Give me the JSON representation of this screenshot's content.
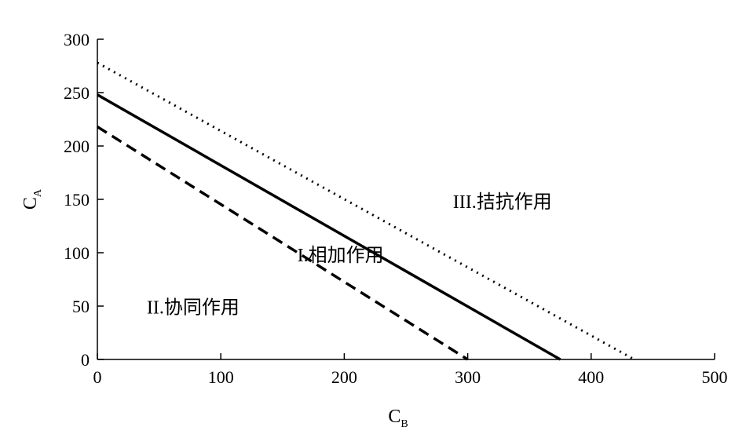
{
  "chart_data": {
    "type": "line",
    "xlabel": {
      "main": "C",
      "sub": "B"
    },
    "ylabel": {
      "main": "C",
      "sub": "A"
    },
    "xlim": [
      0,
      500
    ],
    "ylim": [
      0,
      300
    ],
    "x_ticks": [
      0,
      100,
      200,
      300,
      400,
      500
    ],
    "y_ticks": [
      0,
      50,
      100,
      150,
      200,
      250,
      300
    ],
    "grid": false,
    "series": [
      {
        "style": "dotted",
        "color": "#000000",
        "points": [
          [
            0,
            278
          ],
          [
            435,
            0
          ]
        ]
      },
      {
        "style": "solid",
        "color": "#000000",
        "points": [
          [
            0,
            248
          ],
          [
            375,
            0
          ]
        ]
      },
      {
        "style": "dashed",
        "color": "#000000",
        "points": [
          [
            0,
            218
          ],
          [
            300,
            0
          ]
        ]
      }
    ],
    "annotations": [
      {
        "id": "region-3",
        "text": "III.拮抗作用",
        "x": 288,
        "y": 142
      },
      {
        "id": "region-1",
        "text": "I.相加作用",
        "x": 162,
        "y": 92
      },
      {
        "id": "region-2",
        "text": "II.协同作用",
        "x": 40,
        "y": 43
      }
    ]
  }
}
